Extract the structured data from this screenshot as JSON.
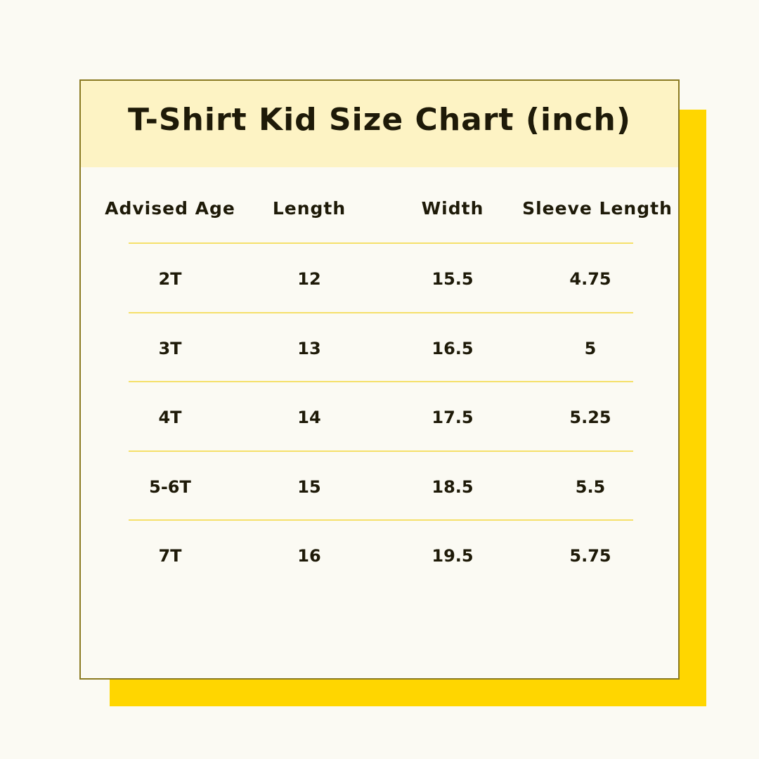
{
  "title": "T-Shirt Kid Size Chart (inch)",
  "colors": {
    "accent": "#ffd600",
    "header_band": "#fdf3c4",
    "border": "#8a7a22",
    "divider": "#f5e06a"
  },
  "columns": [
    "Advised Age",
    "Length",
    "Width",
    "Sleeve Length"
  ],
  "rows": [
    [
      "2T",
      "12",
      "15.5",
      "4.75"
    ],
    [
      "3T",
      "13",
      "16.5",
      "5"
    ],
    [
      "4T",
      "14",
      "17.5",
      "5.25"
    ],
    [
      "5-6T",
      "15",
      "18.5",
      "5.5"
    ],
    [
      "7T",
      "16",
      "19.5",
      "5.75"
    ]
  ]
}
